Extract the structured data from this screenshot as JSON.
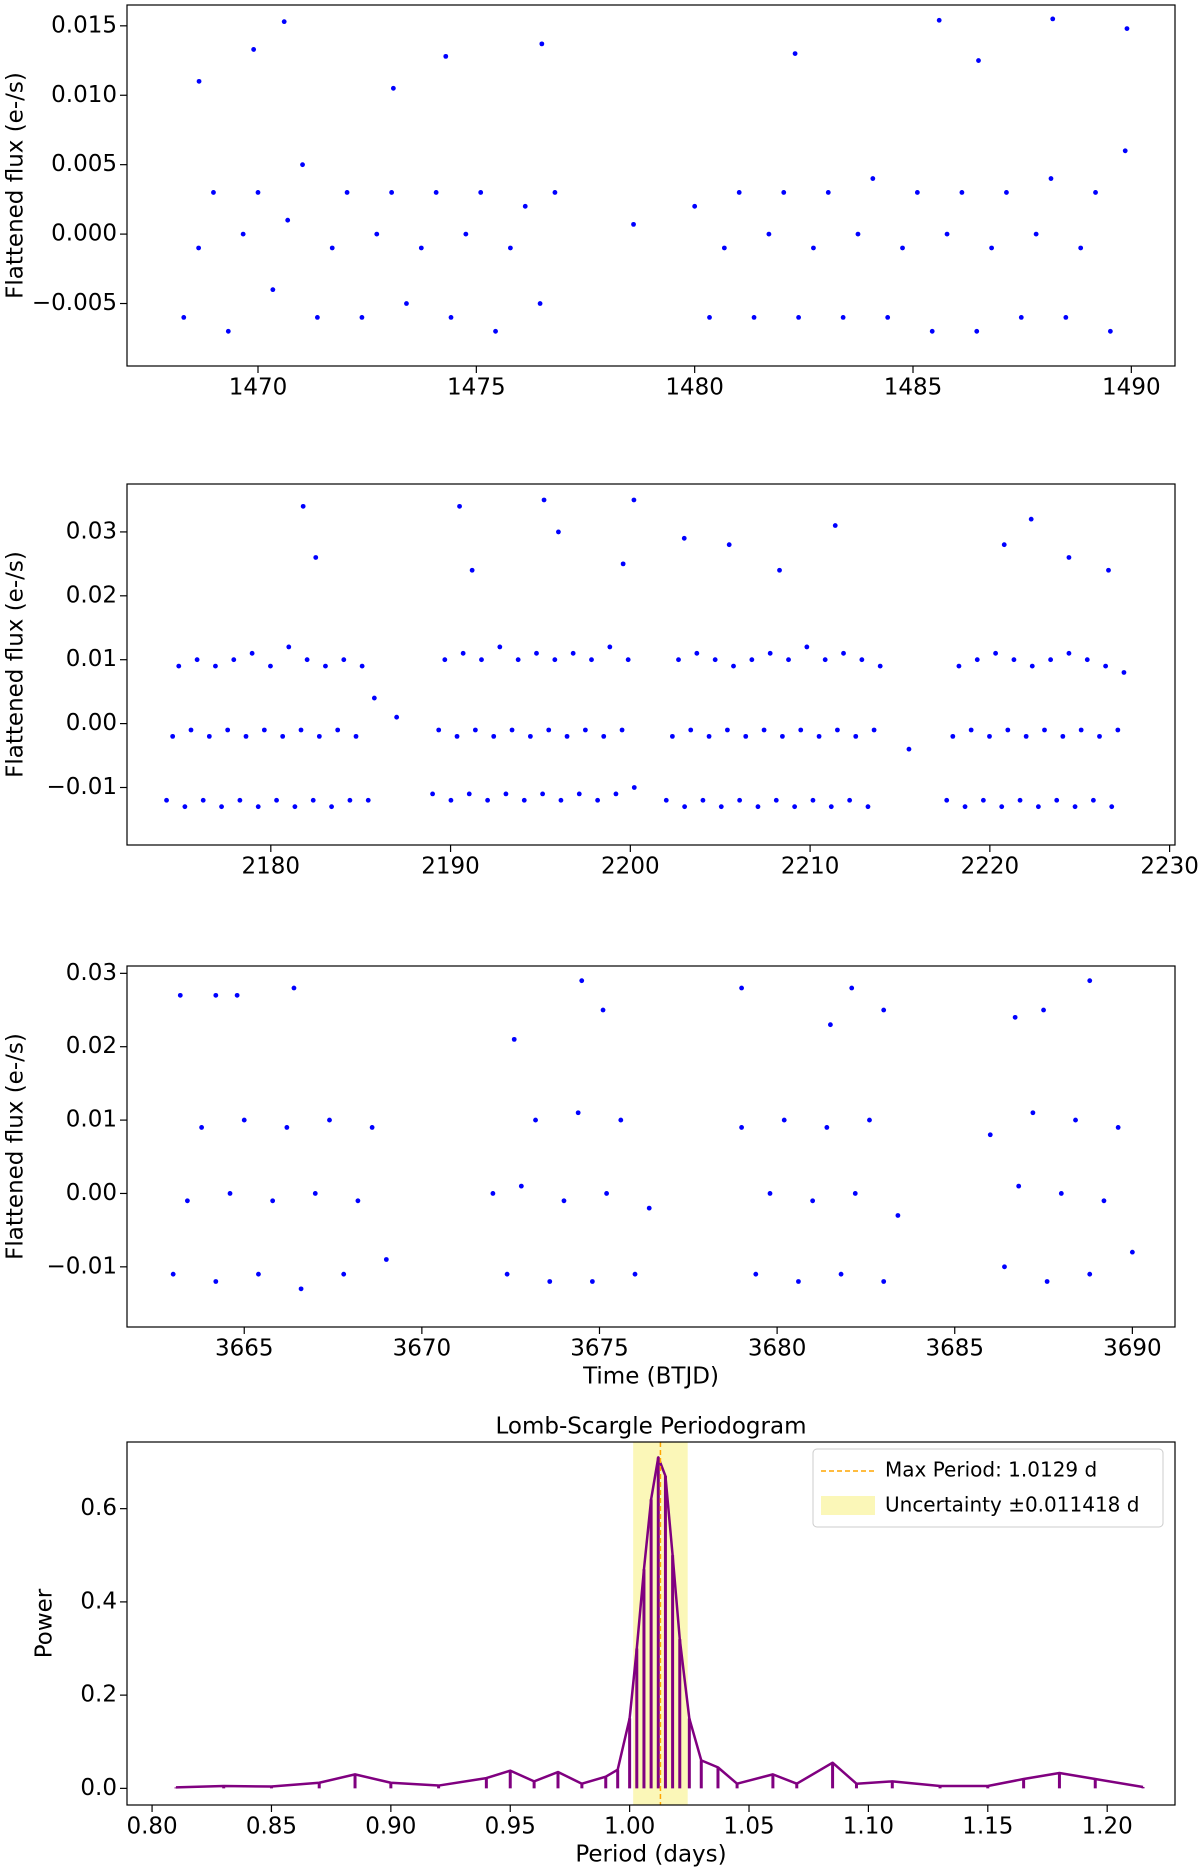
{
  "chart_data": [
    {
      "type": "scatter",
      "ylabel": "Flattened flux (e-/s)",
      "color": "blue",
      "xlim": [
        1467.0,
        1491.0
      ],
      "ylim": [
        -0.0095,
        0.0165
      ],
      "xticks": [
        1470,
        1475,
        1480,
        1485,
        1490
      ],
      "yticks": [
        {
          "value": -0.005,
          "label": "−0.005"
        },
        {
          "value": 0,
          "label": "0.000"
        },
        0.005,
        {
          "value": 0.01,
          "label": "0.010"
        },
        0.015
      ],
      "x": [
        1468.3,
        1468.64,
        1468.98,
        1469.32,
        1469.66,
        1470.0,
        1470.34,
        1470.68,
        1471.02,
        1471.36,
        1471.7,
        1472.04,
        1472.38,
        1472.72,
        1473.06,
        1473.4,
        1473.74,
        1474.08,
        1474.42,
        1474.76,
        1475.1,
        1475.44,
        1475.78,
        1476.12,
        1476.46,
        1476.8,
        1478.6,
        1480.0,
        1480.34,
        1480.68,
        1481.02,
        1481.36,
        1481.7,
        1482.04,
        1482.38,
        1482.72,
        1483.06,
        1483.4,
        1483.74,
        1484.08,
        1484.42,
        1484.76,
        1485.1,
        1485.44,
        1485.78,
        1486.12,
        1486.46,
        1486.8,
        1487.14,
        1487.48,
        1487.82,
        1488.16,
        1488.5,
        1488.84,
        1489.18,
        1489.52,
        1489.86,
        1468.65,
        1469.9,
        1470.6,
        1473.1,
        1474.3,
        1476.5,
        1482.3,
        1485.6,
        1486.5,
        1488.2,
        1489.9
      ],
      "values": [
        -0.006,
        -0.001,
        0.003,
        -0.007,
        0.0,
        0.003,
        -0.004,
        0.001,
        0.005,
        -0.006,
        -0.001,
        0.003,
        -0.006,
        0.0,
        0.003,
        -0.005,
        -0.001,
        0.003,
        -0.006,
        0.0,
        0.003,
        -0.007,
        -0.001,
        0.002,
        -0.005,
        0.003,
        0.0007,
        0.002,
        -0.006,
        -0.001,
        0.003,
        -0.006,
        0.0,
        0.003,
        -0.006,
        -0.001,
        0.003,
        -0.006,
        0.0,
        0.004,
        -0.006,
        -0.001,
        0.003,
        -0.007,
        0.0,
        0.003,
        -0.007,
        -0.001,
        0.003,
        -0.006,
        0.0,
        0.004,
        -0.006,
        -0.001,
        0.003,
        -0.007,
        0.006,
        0.011,
        0.0133,
        0.0153,
        0.0105,
        0.0128,
        0.0137,
        0.013,
        0.0154,
        0.0125,
        0.0155,
        0.0148
      ]
    },
    {
      "type": "scatter",
      "ylabel": "Flattened flux (e-/s)",
      "color": "blue",
      "xlim": [
        2172.0,
        2230.3
      ],
      "ylim": [
        -0.019,
        0.0375
      ],
      "xticks": [
        2180,
        2190,
        2200,
        2210,
        2220,
        2230
      ],
      "yticks": [
        {
          "value": -0.01,
          "label": "−0.01"
        },
        {
          "value": 0,
          "label": "0.00"
        },
        0.01,
        0.02,
        0.03
      ],
      "x": [
        2174.2,
        2174.54,
        2174.88,
        2175.22,
        2175.56,
        2175.9,
        2176.24,
        2176.58,
        2176.92,
        2177.26,
        2177.6,
        2177.94,
        2178.28,
        2178.62,
        2178.96,
        2179.3,
        2179.64,
        2179.98,
        2180.32,
        2180.66,
        2181.0,
        2181.34,
        2181.68,
        2182.02,
        2182.36,
        2182.7,
        2183.04,
        2183.38,
        2183.72,
        2184.06,
        2184.4,
        2184.74,
        2185.08,
        2185.42,
        2185.76,
        2187.0,
        2189.0,
        2189.34,
        2189.68,
        2190.02,
        2190.36,
        2190.7,
        2191.04,
        2191.38,
        2191.72,
        2192.06,
        2192.4,
        2192.74,
        2193.08,
        2193.42,
        2193.76,
        2194.1,
        2194.44,
        2194.78,
        2195.12,
        2195.46,
        2195.8,
        2196.14,
        2196.48,
        2196.82,
        2197.16,
        2197.5,
        2197.84,
        2198.18,
        2198.52,
        2198.86,
        2199.2,
        2199.54,
        2199.88,
        2200.22,
        2202.0,
        2202.34,
        2202.68,
        2203.02,
        2203.36,
        2203.7,
        2204.04,
        2204.38,
        2204.72,
        2205.06,
        2205.4,
        2205.74,
        2206.08,
        2206.42,
        2206.76,
        2207.1,
        2207.44,
        2207.78,
        2208.12,
        2208.46,
        2208.8,
        2209.14,
        2209.48,
        2209.82,
        2210.16,
        2210.5,
        2210.84,
        2211.18,
        2211.52,
        2211.86,
        2212.2,
        2212.54,
        2212.88,
        2213.22,
        2213.56,
        2213.9,
        2215.5,
        2217.6,
        2217.94,
        2218.28,
        2218.62,
        2218.96,
        2219.3,
        2219.64,
        2219.98,
        2220.32,
        2220.66,
        2221.0,
        2221.34,
        2221.68,
        2222.02,
        2222.36,
        2222.7,
        2223.04,
        2223.38,
        2223.72,
        2224.06,
        2224.4,
        2224.74,
        2225.08,
        2225.42,
        2225.76,
        2226.1,
        2226.44,
        2226.78,
        2227.12,
        2227.46,
        2181.8,
        2182.5,
        2190.5,
        2191.2,
        2195.2,
        2196.0,
        2200.2,
        2199.6,
        2203.0,
        2205.5,
        2211.4,
        2208.3,
        2220.8,
        2222.3,
        2224.4,
        2226.6
      ],
      "values": [
        -0.012,
        -0.002,
        0.009,
        -0.013,
        -0.001,
        0.01,
        -0.012,
        -0.002,
        0.009,
        -0.013,
        -0.001,
        0.01,
        -0.012,
        -0.002,
        0.011,
        -0.013,
        -0.001,
        0.009,
        -0.012,
        -0.002,
        0.012,
        -0.013,
        -0.001,
        0.01,
        -0.012,
        -0.002,
        0.009,
        -0.013,
        -0.001,
        0.01,
        -0.012,
        -0.002,
        0.009,
        -0.012,
        0.004,
        0.001,
        -0.011,
        -0.001,
        0.01,
        -0.012,
        -0.002,
        0.011,
        -0.011,
        -0.001,
        0.01,
        -0.012,
        -0.002,
        0.012,
        -0.011,
        -0.001,
        0.01,
        -0.012,
        -0.002,
        0.011,
        -0.011,
        -0.001,
        0.01,
        -0.012,
        -0.002,
        0.011,
        -0.011,
        -0.001,
        0.01,
        -0.012,
        -0.002,
        0.012,
        -0.011,
        -0.001,
        0.01,
        -0.01,
        -0.012,
        -0.002,
        0.01,
        -0.013,
        -0.001,
        0.011,
        -0.012,
        -0.002,
        0.01,
        -0.013,
        -0.001,
        0.009,
        -0.012,
        -0.002,
        0.01,
        -0.013,
        -0.001,
        0.011,
        -0.012,
        -0.002,
        0.01,
        -0.013,
        -0.001,
        0.012,
        -0.012,
        -0.002,
        0.01,
        -0.013,
        -0.001,
        0.011,
        -0.012,
        -0.002,
        0.01,
        -0.013,
        -0.001,
        0.009,
        -0.004,
        -0.012,
        -0.002,
        0.009,
        -0.013,
        -0.001,
        0.01,
        -0.012,
        -0.002,
        0.011,
        -0.013,
        -0.001,
        0.01,
        -0.012,
        -0.002,
        0.009,
        -0.013,
        -0.001,
        0.01,
        -0.012,
        -0.002,
        0.011,
        -0.013,
        -0.001,
        0.01,
        -0.012,
        -0.002,
        0.009,
        -0.013,
        -0.001,
        0.008,
        0.034,
        0.026,
        0.034,
        0.024,
        0.035,
        0.03,
        0.035,
        0.025,
        0.029,
        0.028,
        0.031,
        0.024,
        0.028,
        0.032,
        0.026,
        0.024
      ]
    },
    {
      "type": "scatter",
      "ylabel": "Flattened flux (e-/s)",
      "xlabel": "Time (BTJD)",
      "color": "blue",
      "xlim": [
        3661.7,
        3691.2
      ],
      "ylim": [
        -0.0182,
        0.031
      ],
      "xticks": [
        3665,
        3670,
        3675,
        3680,
        3685,
        3690
      ],
      "yticks": [
        {
          "value": -0.01,
          "label": "−0.01"
        },
        {
          "value": 0,
          "label": "0.00"
        },
        0.01,
        0.02,
        0.03
      ],
      "x": [
        3663.0,
        3663.4,
        3663.8,
        3664.2,
        3664.6,
        3665.0,
        3665.4,
        3665.8,
        3666.2,
        3666.6,
        3667.0,
        3667.4,
        3667.8,
        3668.2,
        3668.6,
        3669.0,
        3672.0,
        3672.4,
        3672.8,
        3673.2,
        3673.6,
        3674.0,
        3674.4,
        3674.8,
        3675.2,
        3675.6,
        3676.0,
        3676.4,
        3679.0,
        3679.4,
        3679.8,
        3680.2,
        3680.6,
        3681.0,
        3681.4,
        3681.8,
        3682.2,
        3682.6,
        3683.0,
        3683.4,
        3686.0,
        3686.4,
        3686.8,
        3687.2,
        3687.6,
        3688.0,
        3688.4,
        3688.8,
        3689.2,
        3689.6,
        3690.0,
        3663.2,
        3664.2,
        3664.8,
        3666.4,
        3672.6,
        3674.5,
        3675.1,
        3679.0,
        3681.5,
        3682.1,
        3683.0,
        3686.7,
        3687.5,
        3688.8
      ],
      "values": [
        -0.011,
        -0.001,
        0.009,
        -0.012,
        0.0,
        0.01,
        -0.011,
        -0.001,
        0.009,
        -0.013,
        0.0,
        0.01,
        -0.011,
        -0.001,
        0.009,
        -0.009,
        0.0,
        -0.011,
        0.001,
        0.01,
        -0.012,
        -0.001,
        0.011,
        -0.012,
        0.0,
        0.01,
        -0.011,
        -0.002,
        0.009,
        -0.011,
        0.0,
        0.01,
        -0.012,
        -0.001,
        0.009,
        -0.011,
        0.0,
        0.01,
        -0.012,
        -0.003,
        0.008,
        -0.01,
        0.001,
        0.011,
        -0.012,
        0.0,
        0.01,
        -0.011,
        -0.001,
        0.009,
        -0.008,
        0.027,
        0.027,
        0.027,
        0.028,
        0.021,
        0.029,
        0.025,
        0.028,
        0.023,
        0.028,
        0.025,
        0.024,
        0.025,
        0.029
      ]
    },
    {
      "type": "line",
      "title": "Lomb-Scargle Periodogram",
      "xlabel": "Period (days)",
      "ylabel": "Power",
      "color": "purple",
      "xlim": [
        0.7895,
        1.2284
      ],
      "ylim": [
        -0.0357,
        0.743
      ],
      "xticks": [
        {
          "value": 0.8,
          "label": "0.80"
        },
        0.85,
        {
          "value": 0.9,
          "label": "0.90"
        },
        0.95,
        {
          "value": 1,
          "label": "1.00"
        },
        1.05,
        {
          "value": 1.1,
          "label": "1.10"
        },
        1.15,
        {
          "value": 1.2,
          "label": "1.20"
        }
      ],
      "yticks": [
        {
          "value": 0,
          "label": "0.0"
        },
        0.2,
        0.4,
        0.6
      ],
      "x": [
        0.81,
        0.83,
        0.85,
        0.87,
        0.885,
        0.9,
        0.92,
        0.94,
        0.95,
        0.96,
        0.97,
        0.98,
        0.99,
        0.995,
        1.0,
        1.003,
        1.006,
        1.009,
        1.012,
        1.015,
        1.018,
        1.021,
        1.025,
        1.03,
        1.037,
        1.045,
        1.06,
        1.07,
        1.085,
        1.095,
        1.11,
        1.13,
        1.15,
        1.165,
        1.18,
        1.195,
        1.215
      ],
      "values": [
        0.002,
        0.005,
        0.004,
        0.012,
        0.03,
        0.012,
        0.006,
        0.022,
        0.038,
        0.015,
        0.035,
        0.01,
        0.025,
        0.04,
        0.15,
        0.3,
        0.47,
        0.62,
        0.71,
        0.67,
        0.5,
        0.32,
        0.15,
        0.06,
        0.045,
        0.01,
        0.03,
        0.01,
        0.055,
        0.01,
        0.015,
        0.005,
        0.005,
        0.02,
        0.033,
        0.02,
        0.003
      ],
      "vline": {
        "value": 1.0129,
        "label": "Max Period: 1.0129 d",
        "color": "orange"
      },
      "span": {
        "error": 0.011418,
        "label": "Uncertainty ±0.011418 d",
        "color": "#fbf7b8"
      },
      "legend": "upper right"
    }
  ]
}
